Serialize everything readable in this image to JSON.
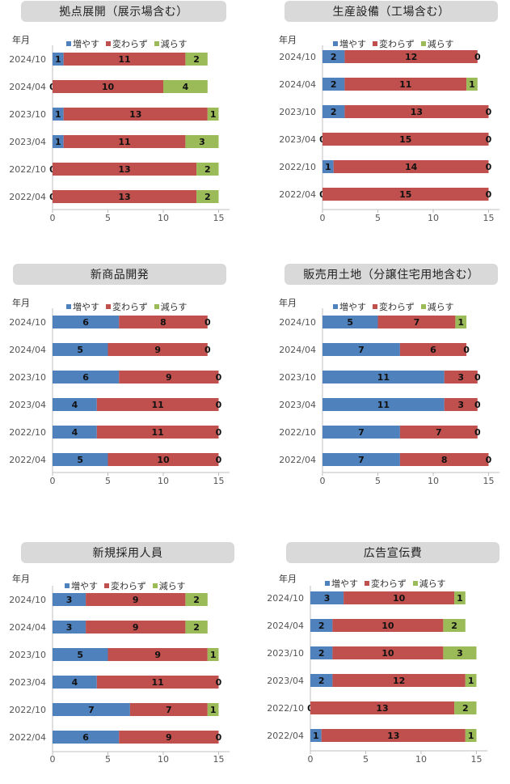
{
  "colors": {
    "increase": "#4f81bd",
    "same": "#c0504d",
    "decrease": "#9bbb59"
  },
  "legend": {
    "increase": "増やす",
    "same": "変わらず",
    "decrease": "減らす"
  },
  "y_axis_label": "年月",
  "chart_data": [
    {
      "type": "bar",
      "title": "拠点展開（展示場含む）",
      "categories": [
        "2024/10",
        "2024/04",
        "2023/10",
        "2023/04",
        "2022/10",
        "2022/04"
      ],
      "series": [
        {
          "name": "増やす",
          "values": [
            1,
            0,
            1,
            1,
            0,
            0
          ]
        },
        {
          "name": "変わらず",
          "values": [
            11,
            10,
            13,
            11,
            13,
            13
          ]
        },
        {
          "name": "減らす",
          "values": [
            2,
            4,
            1,
            3,
            2,
            2
          ]
        }
      ],
      "xticks": [
        "0",
        "5",
        "10",
        "15"
      ],
      "xlim": [
        0,
        16
      ]
    },
    {
      "type": "bar",
      "title": "生産設備（工場含む）",
      "categories": [
        "2024/10",
        "2024/04",
        "2023/10",
        "2023/04",
        "2022/10",
        "2022/04"
      ],
      "series": [
        {
          "name": "増やす",
          "values": [
            2,
            2,
            2,
            0,
            1,
            0
          ]
        },
        {
          "name": "変わらず",
          "values": [
            12,
            11,
            13,
            15,
            14,
            15
          ]
        },
        {
          "name": "減らす",
          "values": [
            0,
            1,
            0,
            0,
            0,
            0
          ]
        }
      ],
      "xticks": [
        "0",
        "5",
        "10",
        "15"
      ],
      "xlim": [
        0,
        16
      ]
    },
    {
      "type": "bar",
      "title": "新商品開発",
      "categories": [
        "2024/10",
        "2024/04",
        "2023/10",
        "2023/04",
        "2022/10",
        "2022/04"
      ],
      "series": [
        {
          "name": "増やす",
          "values": [
            6,
            5,
            6,
            4,
            4,
            5
          ]
        },
        {
          "name": "変わらず",
          "values": [
            8,
            9,
            9,
            11,
            11,
            10
          ]
        },
        {
          "name": "減らす",
          "values": [
            0,
            0,
            0,
            0,
            0,
            0
          ]
        }
      ],
      "xticks": [
        "0",
        "5",
        "10",
        "15"
      ],
      "xlim": [
        0,
        16
      ]
    },
    {
      "type": "bar",
      "title": "販売用土地（分譲住宅用地含む）",
      "categories": [
        "2024/10",
        "2024/04",
        "2023/10",
        "2023/04",
        "2022/10",
        "2022/04"
      ],
      "series": [
        {
          "name": "増やす",
          "values": [
            5,
            7,
            11,
            11,
            7,
            7
          ]
        },
        {
          "name": "変わらず",
          "values": [
            7,
            6,
            3,
            3,
            7,
            8
          ]
        },
        {
          "name": "減らす",
          "values": [
            1,
            0,
            0,
            0,
            0,
            0
          ]
        }
      ],
      "xticks": [
        "0",
        "5",
        "10",
        "15"
      ],
      "xlim": [
        0,
        16
      ]
    },
    {
      "type": "bar",
      "title": "新規採用人員",
      "categories": [
        "2024/10",
        "2024/04",
        "2023/10",
        "2023/04",
        "2022/10",
        "2022/04"
      ],
      "series": [
        {
          "name": "増やす",
          "values": [
            3,
            3,
            5,
            4,
            7,
            6
          ]
        },
        {
          "name": "変わらず",
          "values": [
            9,
            9,
            9,
            11,
            7,
            9
          ]
        },
        {
          "name": "減らす",
          "values": [
            2,
            2,
            1,
            0,
            1,
            0
          ]
        }
      ],
      "xticks": [
        "0",
        "5",
        "10",
        "15"
      ],
      "xlim": [
        0,
        16
      ]
    },
    {
      "type": "bar",
      "title": "広告宣伝費",
      "categories": [
        "2024/10",
        "2024/04",
        "2023/10",
        "2023/04",
        "2022/10",
        "2022/04"
      ],
      "series": [
        {
          "name": "増やす",
          "values": [
            3,
            2,
            2,
            2,
            0,
            1
          ]
        },
        {
          "name": "変わらず",
          "values": [
            10,
            10,
            10,
            12,
            13,
            13
          ]
        },
        {
          "name": "減らす",
          "values": [
            1,
            2,
            3,
            1,
            2,
            1
          ]
        }
      ],
      "xticks": [
        "0",
        "5",
        "10",
        "15"
      ],
      "xlim": [
        0,
        16
      ]
    }
  ]
}
